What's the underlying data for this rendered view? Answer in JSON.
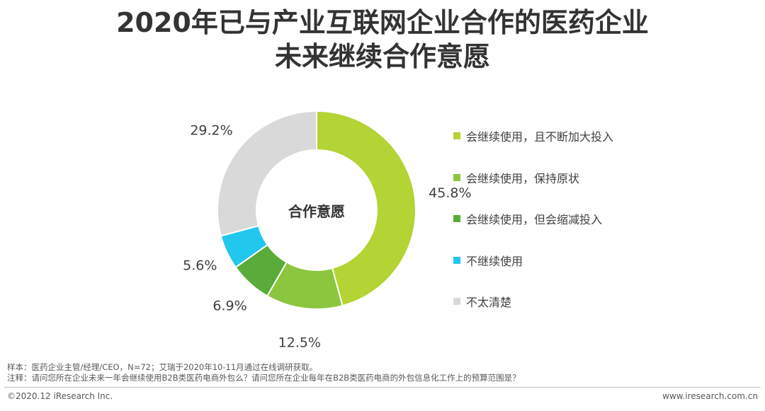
{
  "title_line1": "2020年已与产业互联网企业合作的医药企业",
  "title_line2": "未来继续合作意愿",
  "chart_data": {
    "type": "pie",
    "variant": "donut",
    "center_label": "合作意愿",
    "start": "12 o'clock, clockwise",
    "legend_position": "right",
    "slices": [
      {
        "label": "会继续使用，且不断加大投入",
        "value": 45.8,
        "display": "45.8%",
        "color": "#b4d334"
      },
      {
        "label": "会继续使用，保持原状",
        "value": 12.5,
        "display": "12.5%",
        "color": "#8cc63f"
      },
      {
        "label": "会继续使用，但会缩减投入",
        "value": 6.9,
        "display": "6.9%",
        "color": "#5aab3a"
      },
      {
        "label": "不继续使用",
        "value": 5.6,
        "display": "5.6%",
        "color": "#22c7ee"
      },
      {
        "label": "不太清楚",
        "value": 29.2,
        "display": "29.2%",
        "color": "#d9d9d9"
      }
    ]
  },
  "notes": {
    "sample": "样本：医药企业主管/经理/CEO，N=72；艾瑞于2020年10-11月通过在线调研获取。",
    "annotation": "注释：请问您所在企业未来一年会继续使用B2B类医药电商外包么？请问您所在企业每年在B2B类医药电商的外包信息化工作上的预算范围是？"
  },
  "footer": {
    "copyright": "©2020.12 iResearch Inc.",
    "website": "www.iresearch.com.cn"
  }
}
